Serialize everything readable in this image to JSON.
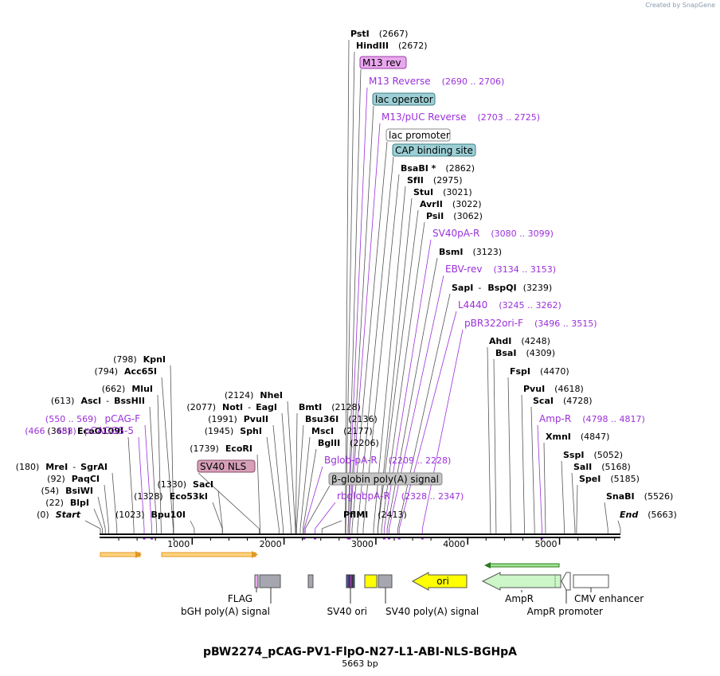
{
  "branding": "Created by SnapGene",
  "map": {
    "title": "pBW2274_pCAG-PV1-FlpO-N27-L1-ABI-NLS-BGHpA",
    "size_label": "5663 bp",
    "total_bp": 5663,
    "ticks": [
      1000,
      2000,
      3000,
      4000,
      5000
    ],
    "enzymes": [
      {
        "name": "PstI",
        "pos": "(2667)",
        "bp": 2667
      },
      {
        "name": "HindIII",
        "pos": "(2672)",
        "bp": 2672
      },
      {
        "name": "BsaBI *",
        "pos": "(2862)",
        "bp": 2862
      },
      {
        "name": "SfII",
        "pos": "(2975)",
        "bp": 2975
      },
      {
        "name": "StuI",
        "pos": "(3021)",
        "bp": 3021
      },
      {
        "name": "AvrII",
        "pos": "(3022)",
        "bp": 3022
      },
      {
        "name": "PsiI",
        "pos": "(3062)",
        "bp": 3062
      },
      {
        "name": "BsmI",
        "pos": "(3123)",
        "bp": 3123
      },
      {
        "name": "SapI",
        "name2": "BspQI",
        "pos": "(3239)",
        "bp": 3239
      },
      {
        "name": "AhdI",
        "pos": "(4248)",
        "bp": 4248
      },
      {
        "name": "BsaI",
        "pos": "(4309)",
        "bp": 4309
      },
      {
        "name": "FspI",
        "pos": "(4470)",
        "bp": 4470
      },
      {
        "name": "PvuI",
        "pos": "(4618)",
        "bp": 4618
      },
      {
        "name": "ScaI",
        "pos": "(4728)",
        "bp": 4728
      },
      {
        "name": "XmnI",
        "pos": "(4847)",
        "bp": 4847
      },
      {
        "name": "SspI",
        "pos": "(5052)",
        "bp": 5052
      },
      {
        "name": "SalI",
        "pos": "(5168)",
        "bp": 5168
      },
      {
        "name": "SpeI",
        "pos": "(5185)",
        "bp": 5185
      },
      {
        "name": "SnaBI",
        "pos": "(5526)",
        "bp": 5526
      },
      {
        "name": "End",
        "pos": "(5663)",
        "bp": 5663,
        "italic": true
      },
      {
        "name": "KpnI",
        "pos": "(798)",
        "bp": 798
      },
      {
        "name": "Acc65I",
        "pos": "(794)",
        "bp": 794
      },
      {
        "name": "MluI",
        "pos": "(662)",
        "bp": 662
      },
      {
        "name": "AscI",
        "name2": "BssHII",
        "pos": "(613)",
        "bp": 613
      },
      {
        "name": "EcoO109I",
        "pos": "(365)",
        "bp": 365
      },
      {
        "name": "MreI",
        "name2": "SgrAI",
        "pos": "(180)",
        "bp": 180
      },
      {
        "name": "PaqCI",
        "pos": "(92)",
        "bp": 92
      },
      {
        "name": "BsiWI",
        "pos": "(54)",
        "bp": 54
      },
      {
        "name": "BlpI",
        "pos": "(22)",
        "bp": 22
      },
      {
        "name": "Start",
        "pos": "(0)",
        "bp": 0,
        "italic": true
      },
      {
        "name": "SacI",
        "pos": "(1330)",
        "bp": 1330
      },
      {
        "name": "Eco53kI",
        "pos": "(1328)",
        "bp": 1328
      },
      {
        "name": "Bpu10I",
        "pos": "(1023)",
        "bp": 1023
      },
      {
        "name": "EcoRI",
        "pos": "(1739)",
        "bp": 1739
      },
      {
        "name": "NheI",
        "pos": "(2124)",
        "bp": 2124
      },
      {
        "name": "NotI",
        "name2": "EagI",
        "pos": "(2077)",
        "bp": 2077
      },
      {
        "name": "PvuII",
        "pos": "(1991)",
        "bp": 1991
      },
      {
        "name": "SphI",
        "pos": "(1945)",
        "bp": 1945
      },
      {
        "name": "BmtI",
        "pos": "(2128)",
        "bp": 2128
      },
      {
        "name": "Bsu36I",
        "pos": "(2136)",
        "bp": 2136
      },
      {
        "name": "MscI",
        "pos": "(2177)",
        "bp": 2177
      },
      {
        "name": "BglII",
        "pos": "(2206)",
        "bp": 2206
      },
      {
        "name": "PflMI",
        "pos": "(2413)",
        "bp": 2413
      }
    ],
    "primers": [
      {
        "name": "M13 Reverse",
        "range": "(2690 .. 2706)",
        "bp": 2698
      },
      {
        "name": "M13/pUC Reverse",
        "range": "(2703 .. 2725)",
        "bp": 2714
      },
      {
        "name": "SV40pA-R",
        "range": "(3080 .. 3099)",
        "bp": 3090
      },
      {
        "name": "EBV-rev",
        "range": "(3134 .. 3153)",
        "bp": 3144
      },
      {
        "name": "L4440",
        "range": "(3245 .. 3262)",
        "bp": 3254
      },
      {
        "name": "pBR322ori-F",
        "range": "(3496 .. 3515)",
        "bp": 3506
      },
      {
        "name": "Amp-R",
        "range": "(4798 .. 4817)",
        "bp": 4808
      },
      {
        "name": "pCAG-F",
        "range": "(550 .. 569)",
        "bp": 560
      },
      {
        "name": "pCAGGS-5",
        "range": "(466 .. 488)",
        "bp": 477
      },
      {
        "name": "Bglob-pA-R",
        "range": "(2209 .. 2228)",
        "bp": 2219
      },
      {
        "name": "rbglobpA-R",
        "range": "(2328 .. 2347)",
        "bp": 2338
      }
    ],
    "boxed_features": [
      {
        "name": "M13 rev",
        "bp": 2698,
        "fill": "#e9a8ee",
        "stroke": "#9b3ba3"
      },
      {
        "name": "lac operator",
        "bp": 2712,
        "fill": "#9dd0d6",
        "stroke": "#3f7f86"
      },
      {
        "name": "lac promoter",
        "bp": 2740,
        "fill": "#ffffff",
        "stroke": "#888888"
      },
      {
        "name": "CAP binding site",
        "bp": 2800,
        "fill": "#9dd0d6",
        "stroke": "#3f7f86"
      },
      {
        "name": "β-globin poly(A) signal",
        "bp": 2230,
        "fill": "#c4c4c4",
        "stroke": "#888888"
      },
      {
        "name": "SV40 NLS",
        "bp": 1730,
        "fill": "#d6a0b8",
        "stroke": "#8a4a68"
      }
    ],
    "bottom_features": [
      {
        "name": "FLAG"
      },
      {
        "name": "bGH poly(A) signal"
      },
      {
        "name": "SV40 ori"
      },
      {
        "name": "SV40 poly(A) signal"
      },
      {
        "name": "ori"
      },
      {
        "name": "AmpR"
      },
      {
        "name": "AmpR promoter"
      },
      {
        "name": "CMV enhancer"
      }
    ],
    "colors": {
      "enzyme_text": "#000000",
      "primer_text": "#9b30d9",
      "primer_line": "#9b30d9",
      "orf_arrow": "#e09820",
      "ori_fill": "#ffff00",
      "ampr_fill": "#ccf5c8"
    }
  }
}
